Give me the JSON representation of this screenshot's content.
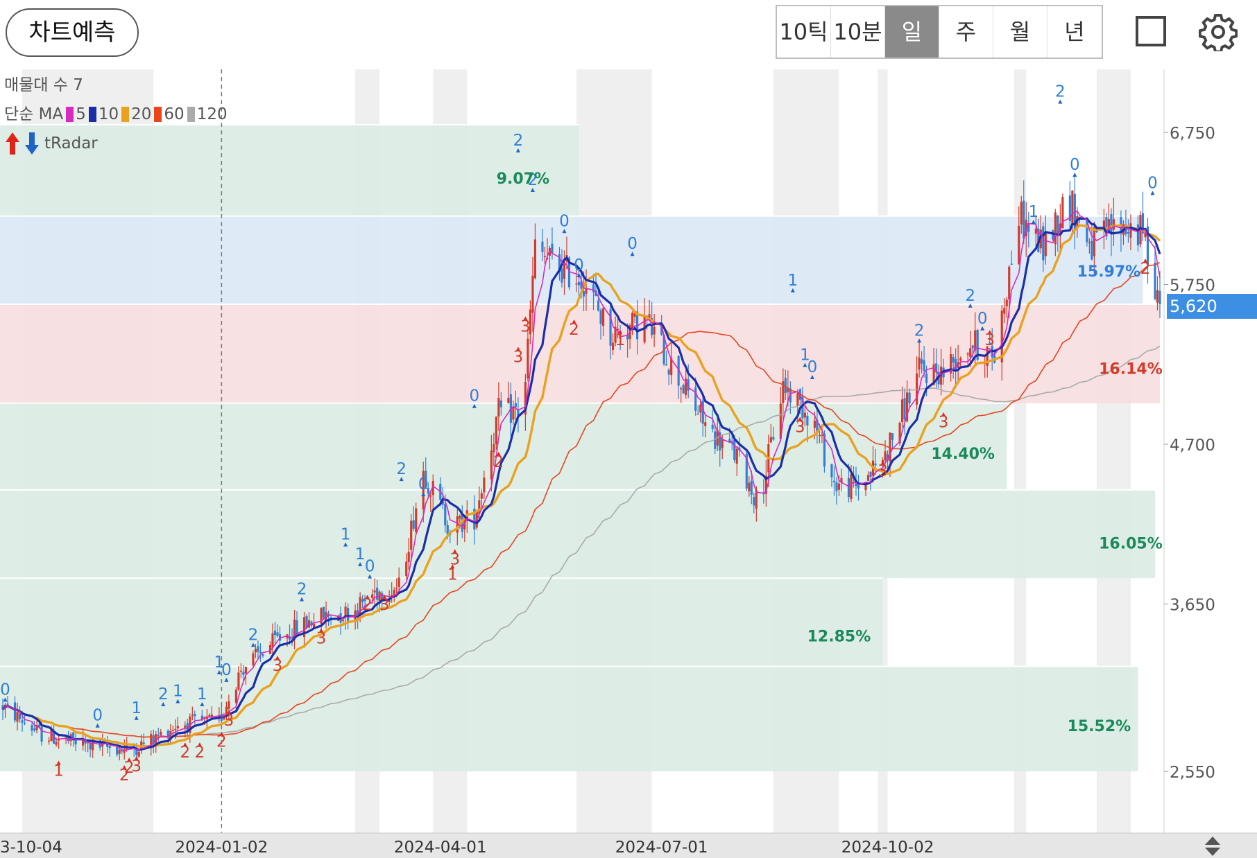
{
  "toolbar": {
    "predict_label": "차트예측",
    "periods": [
      "10틱",
      "10분",
      "일",
      "주",
      "월",
      "년"
    ],
    "active_period": "일",
    "icons": [
      "square-icon",
      "gear-icon"
    ]
  },
  "legend": {
    "volume_profile": "매물대 수 7",
    "ma_prefix": "단순 MA",
    "ma_items": [
      {
        "period": "5",
        "color": "#d62bc0"
      },
      {
        "period": "10",
        "color": "#1a2ea8"
      },
      {
        "period": "20",
        "color": "#e9a11e"
      },
      {
        "period": "60",
        "color": "#e8451f"
      },
      {
        "period": "120",
        "color": "#aaaaaa"
      }
    ],
    "radar_label": "tRadar"
  },
  "last_price": "5,620",
  "chart_data": {
    "type": "candlestick",
    "y_ticks": [
      "6,750",
      "5,750",
      "4,700",
      "3,650",
      "2,550"
    ],
    "y_tick_values": [
      6750,
      5750,
      4700,
      3650,
      2550
    ],
    "x_ticks": [
      "3-10-04",
      "2024-01-02",
      "2024-04-01",
      "2024-07-01",
      "2024-10-02"
    ],
    "x_range": [
      "2023-10-04",
      "2025-01-22"
    ],
    "current_price": 5620,
    "up_color": "#d23b2a",
    "down_color": "#2f7fd6",
    "price_zones": [
      {
        "from": 6200,
        "to": 6800,
        "fill": "#dbece4",
        "until": "2024-05-28"
      },
      {
        "from": 5620,
        "to": 6200,
        "fill": "#dce8f6",
        "until": "2025-01-15"
      },
      {
        "from": 4970,
        "to": 5620,
        "fill": "#f6dedf",
        "until": "2025-01-22"
      },
      {
        "from": 4400,
        "to": 4970,
        "fill": "#dbece4",
        "until": "2024-11-20"
      },
      {
        "from": 3820,
        "to": 4400,
        "fill": "#dbece4",
        "until": "2025-01-20"
      },
      {
        "from": 3240,
        "to": 3820,
        "fill": "#dbece4",
        "until": "2024-09-30"
      },
      {
        "from": 2550,
        "to": 3240,
        "fill": "#dbece4",
        "until": "2025-01-13"
      }
    ],
    "zone_labels": [
      {
        "text": "9.07%",
        "date": "2024-05-05",
        "price": 6450,
        "color": "#1a8a5a"
      },
      {
        "text": "15.97%",
        "date": "2025-01-01",
        "price": 5840,
        "color": "#2f7fd6"
      },
      {
        "text": "16.14%",
        "date": "2025-01-10",
        "price": 5200,
        "color": "#d23b2a"
      },
      {
        "text": "14.40%",
        "date": "2024-11-02",
        "price": 4640,
        "color": "#1a8a5a"
      },
      {
        "text": "16.05%",
        "date": "2025-01-10",
        "price": 4050,
        "color": "#1a8a5a"
      },
      {
        "text": "12.85%",
        "date": "2024-09-12",
        "price": 3440,
        "color": "#1a8a5a"
      },
      {
        "text": "15.52%",
        "date": "2024-12-28",
        "price": 2850,
        "color": "#1a8a5a"
      }
    ],
    "shaded_date_bands": [
      [
        "2023-10-12",
        "2023-12-05"
      ],
      [
        "2024-02-26",
        "2024-03-07"
      ],
      [
        "2024-03-29",
        "2024-04-12"
      ],
      [
        "2024-05-27",
        "2024-06-27"
      ],
      [
        "2024-08-16",
        "2024-09-12"
      ],
      [
        "2024-09-28",
        "2024-10-02"
      ],
      [
        "2024-11-23",
        "2024-11-28"
      ],
      [
        "2024-12-27",
        "2025-01-10"
      ]
    ],
    "dashed_marker_date": "2024-01-02",
    "anchors": [
      [
        "2023-10-04",
        2980
      ],
      [
        "2023-10-20",
        2790
      ],
      [
        "2023-11-05",
        2730
      ],
      [
        "2023-11-25",
        2690
      ],
      [
        "2023-12-05",
        2760
      ],
      [
        "2023-12-15",
        2860
      ],
      [
        "2024-01-01",
        2880
      ],
      [
        "2024-01-10",
        3220
      ],
      [
        "2024-01-25",
        3420
      ],
      [
        "2024-02-10",
        3560
      ],
      [
        "2024-02-25",
        3600
      ],
      [
        "2024-03-05",
        3730
      ],
      [
        "2024-03-15",
        3760
      ],
      [
        "2024-03-25",
        4530
      ],
      [
        "2024-04-05",
        4150
      ],
      [
        "2024-04-15",
        4220
      ],
      [
        "2024-04-25",
        4910
      ],
      [
        "2024-05-05",
        4920
      ],
      [
        "2024-05-10",
        5980
      ],
      [
        "2024-05-20",
        5860
      ],
      [
        "2024-05-30",
        5780
      ],
      [
        "2024-06-10",
        5420
      ],
      [
        "2024-06-25",
        5510
      ],
      [
        "2024-07-05",
        5220
      ],
      [
        "2024-07-20",
        4800
      ],
      [
        "2024-08-01",
        4620
      ],
      [
        "2024-08-10",
        4300
      ],
      [
        "2024-08-20",
        5090
      ],
      [
        "2024-09-01",
        4880
      ],
      [
        "2024-09-10",
        4440
      ],
      [
        "2024-09-20",
        4420
      ],
      [
        "2024-10-01",
        4630
      ],
      [
        "2024-10-15",
        5180
      ],
      [
        "2024-10-25",
        5180
      ],
      [
        "2024-11-05",
        5370
      ],
      [
        "2024-11-15",
        5280
      ],
      [
        "2024-11-25",
        6200
      ],
      [
        "2024-12-05",
        5990
      ],
      [
        "2024-12-15",
        6320
      ],
      [
        "2024-12-25",
        6000
      ],
      [
        "2025-01-05",
        6150
      ],
      [
        "2025-01-15",
        6090
      ],
      [
        "2025-01-22",
        5620
      ]
    ],
    "moving_average_periods": [
      5,
      10,
      20,
      60,
      120
    ],
    "signal_marks": [
      {
        "text": "0",
        "date": "2023-10-05",
        "price": 2990,
        "color": "#2f7fd6",
        "pos": "above"
      },
      {
        "text": "0",
        "date": "2023-11-12",
        "price": 2820,
        "color": "#2f7fd6",
        "pos": "above"
      },
      {
        "text": "1",
        "date": "2023-10-27",
        "price": 2630,
        "color": "#d23b2a",
        "pos": "below"
      },
      {
        "text": "2",
        "date": "2023-11-23",
        "price": 2600,
        "color": "#d23b2a",
        "pos": "below"
      },
      {
        "text": "2",
        "date": "2023-11-25",
        "price": 2650,
        "color": "#d23b2a",
        "pos": "below"
      },
      {
        "text": "3",
        "date": "2023-11-28",
        "price": 2660,
        "color": "#d23b2a",
        "pos": "below"
      },
      {
        "text": "1",
        "date": "2023-11-28",
        "price": 2870,
        "color": "#2f7fd6",
        "pos": "above"
      },
      {
        "text": "2",
        "date": "2023-12-09",
        "price": 2960,
        "color": "#2f7fd6",
        "pos": "above"
      },
      {
        "text": "1",
        "date": "2023-12-15",
        "price": 2980,
        "color": "#2f7fd6",
        "pos": "above"
      },
      {
        "text": "1",
        "date": "2023-12-25",
        "price": 2960,
        "color": "#2f7fd6",
        "pos": "above"
      },
      {
        "text": "2",
        "date": "2023-12-18",
        "price": 2750,
        "color": "#d23b2a",
        "pos": "below"
      },
      {
        "text": "2",
        "date": "2023-12-24",
        "price": 2750,
        "color": "#d23b2a",
        "pos": "below"
      },
      {
        "text": "2",
        "date": "2024-01-02",
        "price": 2820,
        "color": "#d23b2a",
        "pos": "below"
      },
      {
        "text": "3",
        "date": "2024-01-05",
        "price": 2960,
        "color": "#d23b2a",
        "pos": "below"
      },
      {
        "text": "1",
        "date": "2024-01-01",
        "price": 3170,
        "color": "#2f7fd6",
        "pos": "above"
      },
      {
        "text": "0",
        "date": "2024-01-04",
        "price": 3120,
        "color": "#2f7fd6",
        "pos": "above"
      },
      {
        "text": "2",
        "date": "2024-01-15",
        "price": 3350,
        "color": "#2f7fd6",
        "pos": "above"
      },
      {
        "text": "3",
        "date": "2024-01-25",
        "price": 3320,
        "color": "#d23b2a",
        "pos": "below"
      },
      {
        "text": "2",
        "date": "2024-02-04",
        "price": 3650,
        "color": "#2f7fd6",
        "pos": "above"
      },
      {
        "text": "3",
        "date": "2024-02-12",
        "price": 3500,
        "color": "#d23b2a",
        "pos": "below"
      },
      {
        "text": "1",
        "date": "2024-02-22",
        "price": 4010,
        "color": "#2f7fd6",
        "pos": "above"
      },
      {
        "text": "1",
        "date": "2024-02-28",
        "price": 3880,
        "color": "#2f7fd6",
        "pos": "above"
      },
      {
        "text": "0",
        "date": "2024-03-03",
        "price": 3800,
        "color": "#2f7fd6",
        "pos": "above"
      },
      {
        "text": "2",
        "date": "2024-03-02",
        "price": 3720,
        "color": "#d23b2a",
        "pos": "below"
      },
      {
        "text": "3",
        "date": "2024-03-09",
        "price": 3720,
        "color": "#d23b2a",
        "pos": "below"
      },
      {
        "text": "2",
        "date": "2024-03-16",
        "price": 4440,
        "color": "#2f7fd6",
        "pos": "above"
      },
      {
        "text": "0",
        "date": "2024-03-25",
        "price": 4340,
        "color": "#2f7fd6",
        "pos": "above"
      },
      {
        "text": "3",
        "date": "2024-04-07",
        "price": 4020,
        "color": "#d23b2a",
        "pos": "below"
      },
      {
        "text": "1",
        "date": "2024-04-06",
        "price": 3920,
        "color": "#d23b2a",
        "pos": "below"
      },
      {
        "text": "0",
        "date": "2024-04-15",
        "price": 4920,
        "color": "#2f7fd6",
        "pos": "above"
      },
      {
        "text": "2",
        "date": "2024-04-25",
        "price": 4660,
        "color": "#d23b2a",
        "pos": "below"
      },
      {
        "text": "2",
        "date": "2024-05-03",
        "price": 6600,
        "color": "#2f7fd6",
        "pos": "above"
      },
      {
        "text": "3",
        "date": "2024-05-03",
        "price": 5350,
        "color": "#d23b2a",
        "pos": "below"
      },
      {
        "text": "3",
        "date": "2024-05-06",
        "price": 5550,
        "color": "#d23b2a",
        "pos": "below"
      },
      {
        "text": "2",
        "date": "2024-05-09",
        "price": 6340,
        "color": "#2f7fd6",
        "pos": "above"
      },
      {
        "text": "0",
        "date": "2024-05-22",
        "price": 6070,
        "color": "#2f7fd6",
        "pos": "above"
      },
      {
        "text": "0",
        "date": "2024-05-28",
        "price": 5780,
        "color": "#2f7fd6",
        "pos": "above"
      },
      {
        "text": "2",
        "date": "2024-05-26",
        "price": 5530,
        "color": "#d23b2a",
        "pos": "below"
      },
      {
        "text": "0",
        "date": "2024-06-19",
        "price": 5920,
        "color": "#2f7fd6",
        "pos": "above"
      },
      {
        "text": "1",
        "date": "2024-06-14",
        "price": 5460,
        "color": "#d23b2a",
        "pos": "below"
      },
      {
        "text": "1",
        "date": "2024-08-24",
        "price": 5680,
        "color": "#2f7fd6",
        "pos": "above"
      },
      {
        "text": "1",
        "date": "2024-08-29",
        "price": 5190,
        "color": "#2f7fd6",
        "pos": "above"
      },
      {
        "text": "0",
        "date": "2024-09-01",
        "price": 5110,
        "color": "#2f7fd6",
        "pos": "above"
      },
      {
        "text": "3",
        "date": "2024-08-27",
        "price": 4890,
        "color": "#d23b2a",
        "pos": "below"
      },
      {
        "text": "3",
        "date": "2024-09-30",
        "price": 4600,
        "color": "#d23b2a",
        "pos": "below"
      },
      {
        "text": "2",
        "date": "2024-10-15",
        "price": 5350,
        "color": "#2f7fd6",
        "pos": "above"
      },
      {
        "text": "3",
        "date": "2024-10-25",
        "price": 4920,
        "color": "#d23b2a",
        "pos": "below"
      },
      {
        "text": "2",
        "date": "2024-11-05",
        "price": 5580,
        "color": "#2f7fd6",
        "pos": "above"
      },
      {
        "text": "0",
        "date": "2024-11-10",
        "price": 5430,
        "color": "#2f7fd6",
        "pos": "above"
      },
      {
        "text": "3",
        "date": "2024-11-13",
        "price": 5460,
        "color": "#d23b2a",
        "pos": "below"
      },
      {
        "text": "1",
        "date": "2024-12-01",
        "price": 6130,
        "color": "#2f7fd6",
        "pos": "above"
      },
      {
        "text": "2",
        "date": "2024-12-12",
        "price": 6920,
        "color": "#2f7fd6",
        "pos": "above"
      },
      {
        "text": "0",
        "date": "2024-12-18",
        "price": 6440,
        "color": "#2f7fd6",
        "pos": "above"
      },
      {
        "text": "0",
        "date": "2025-01-19",
        "price": 6320,
        "color": "#2f7fd6",
        "pos": "above"
      },
      {
        "text": "2",
        "date": "2025-01-16",
        "price": 5930,
        "color": "#d23b2a",
        "pos": "below"
      }
    ]
  }
}
